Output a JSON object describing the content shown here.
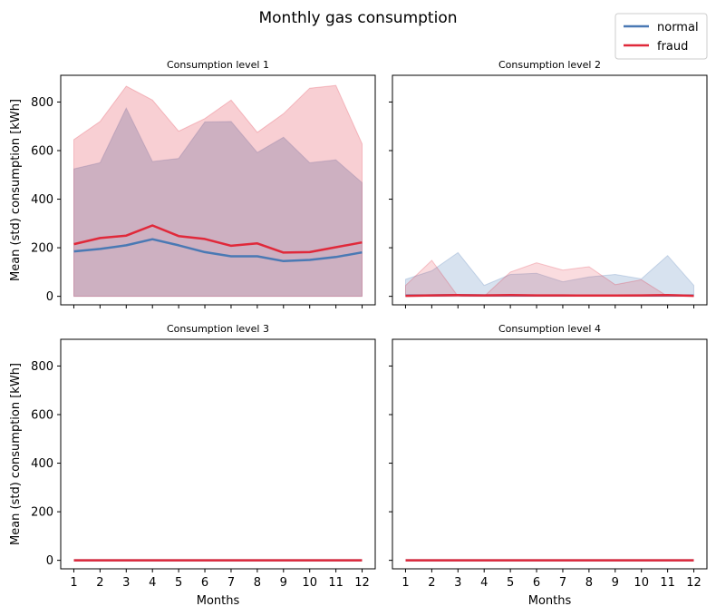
{
  "chart_data": {
    "type": "line",
    "title": "Monthly gas consumption",
    "xlabel": "Months",
    "ylabel": "Mean (std) consumption [kWh]",
    "x": [
      1,
      2,
      3,
      4,
      5,
      6,
      7,
      8,
      9,
      10,
      11,
      12
    ],
    "xlim": [
      0.5,
      12.5
    ],
    "ylim": [
      -35,
      910
    ],
    "yticks": [
      0,
      200,
      400,
      600,
      800
    ],
    "grid": false,
    "legend": {
      "placement": "top-right",
      "entries": [
        "normal",
        "fraud"
      ]
    },
    "colors": {
      "normal": "#4a79b4",
      "fraud": "#e0293a"
    },
    "panels": [
      {
        "title": "Consumption level 1",
        "series": [
          {
            "name": "normal",
            "mean": [
              185,
              195,
              210,
              235,
              210,
              182,
              165,
              165,
              145,
              150,
              162,
              181
            ],
            "upper": [
              525,
              550,
              775,
              555,
              568,
              718,
              720,
              592,
              655,
              550,
              562,
              468
            ],
            "lower": [
              0,
              0,
              0,
              0,
              0,
              0,
              0,
              0,
              0,
              0,
              0,
              0
            ]
          },
          {
            "name": "fraud",
            "mean": [
              215,
              240,
              250,
              292,
              248,
              236,
              208,
              218,
              180,
              182,
              202,
              222
            ],
            "upper": [
              645,
              720,
              865,
              808,
              680,
              732,
              808,
              675,
              752,
              857,
              868,
              628
            ],
            "lower": [
              0,
              0,
              0,
              0,
              0,
              0,
              0,
              0,
              0,
              0,
              0,
              0
            ]
          }
        ]
      },
      {
        "title": "Consumption level 2",
        "series": [
          {
            "name": "normal",
            "mean": [
              3,
              4,
              5,
              4,
              4,
              3,
              3,
              3,
              3,
              3,
              4,
              3
            ],
            "upper": [
              70,
              105,
              180,
              45,
              90,
              95,
              60,
              80,
              90,
              72,
              168,
              45
            ],
            "lower": [
              0,
              0,
              0,
              0,
              0,
              0,
              0,
              0,
              0,
              0,
              0,
              0
            ]
          },
          {
            "name": "fraud",
            "mean": [
              2,
              4,
              5,
              4,
              5,
              4,
              4,
              3,
              3,
              4,
              5,
              2
            ],
            "upper": [
              45,
              148,
              0,
              0,
              100,
              138,
              108,
              122,
              48,
              68,
              0,
              0
            ],
            "lower": [
              0,
              0,
              0,
              0,
              0,
              0,
              0,
              0,
              0,
              0,
              0,
              0
            ]
          }
        ]
      },
      {
        "title": "Consumption level 3",
        "series": [
          {
            "name": "normal",
            "mean": [
              0,
              0,
              0,
              0,
              0,
              0,
              0,
              0,
              0,
              0,
              0,
              0
            ],
            "upper": [
              0,
              0,
              0,
              0,
              0,
              0,
              0,
              0,
              0,
              0,
              0,
              0
            ],
            "lower": [
              0,
              0,
              0,
              0,
              0,
              0,
              0,
              0,
              0,
              0,
              0,
              0
            ]
          },
          {
            "name": "fraud",
            "mean": [
              0,
              0,
              0,
              0,
              0,
              0,
              0,
              0,
              0,
              0,
              0,
              0
            ],
            "upper": [
              0,
              0,
              0,
              0,
              0,
              0,
              0,
              0,
              0,
              0,
              0,
              0
            ],
            "lower": [
              0,
              0,
              0,
              0,
              0,
              0,
              0,
              0,
              0,
              0,
              0,
              0
            ]
          }
        ]
      },
      {
        "title": "Consumption level 4",
        "series": [
          {
            "name": "normal",
            "mean": [
              0,
              0,
              0,
              0,
              0,
              0,
              0,
              0,
              0,
              0,
              0,
              0
            ],
            "upper": [
              0,
              0,
              0,
              0,
              0,
              0,
              0,
              0,
              0,
              0,
              0,
              0
            ],
            "lower": [
              0,
              0,
              0,
              0,
              0,
              0,
              0,
              0,
              0,
              0,
              0,
              0
            ]
          },
          {
            "name": "fraud",
            "mean": [
              0,
              0,
              0,
              0,
              0,
              0,
              0,
              0,
              0,
              0,
              0,
              0
            ],
            "upper": [
              0,
              0,
              0,
              0,
              0,
              0,
              0,
              0,
              0,
              0,
              0,
              0
            ],
            "lower": [
              0,
              0,
              0,
              0,
              0,
              0,
              0,
              0,
              0,
              0,
              0,
              0
            ]
          }
        ]
      }
    ]
  }
}
